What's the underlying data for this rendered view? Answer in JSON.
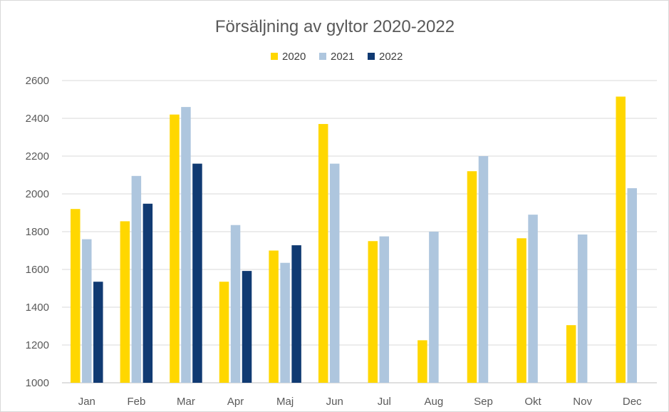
{
  "chart_data": {
    "type": "bar",
    "title": "Försäljning av gyltor 2020-2022",
    "xlabel": "",
    "ylabel": "",
    "categories": [
      "Jan",
      "Feb",
      "Mar",
      "Apr",
      "Maj",
      "Jun",
      "Jul",
      "Aug",
      "Sep",
      "Okt",
      "Nov",
      "Dec"
    ],
    "series": [
      {
        "name": "2020",
        "color": "#FFD700",
        "values": [
          1920,
          1855,
          2420,
          1535,
          1700,
          2370,
          1750,
          1225,
          2120,
          1765,
          1305,
          2515
        ]
      },
      {
        "name": "2021",
        "color": "#AEC6DE",
        "values": [
          1760,
          2095,
          2460,
          1835,
          1635,
          2160,
          1775,
          1800,
          2200,
          1890,
          1785,
          2030
        ]
      },
      {
        "name": "2022",
        "color": "#103A72",
        "values": [
          1535,
          1948,
          2160,
          1592,
          1728,
          null,
          null,
          null,
          null,
          null,
          null,
          null
        ]
      }
    ],
    "ylim": [
      1000,
      2600
    ],
    "yticks": [
      "1000",
      "1200",
      "1400",
      "1600",
      "1800",
      "2000",
      "2200",
      "2400",
      "2600"
    ],
    "grid": true,
    "legend_position": "top-center"
  }
}
